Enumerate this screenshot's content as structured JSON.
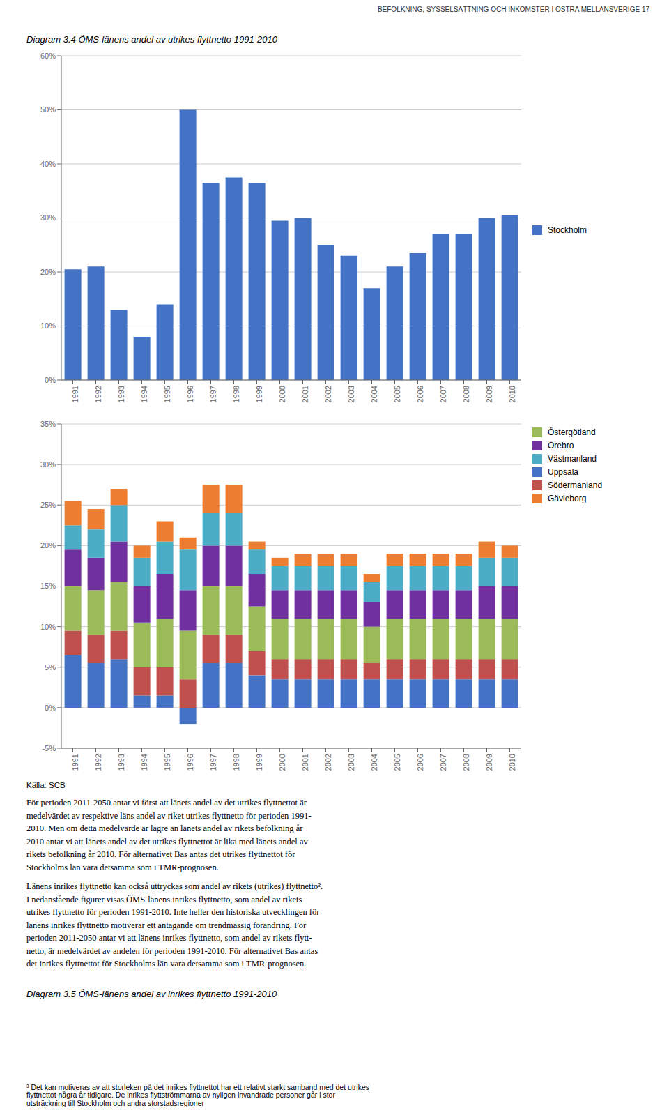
{
  "chart_data": [
    {
      "type": "bar",
      "title": "Diagram 3.4    ÖMS-länens andel av utrikes flyttnetto 1991-2010",
      "annotations": [
        [
          "BEFOLKNING, SYSSELSÄTTNING OCH INKOMSTER I ÖSTRA MELLANSVERIGE    17"
        ]
      ],
      "categories": [
        "1991",
        "1992",
        "1993",
        "1994",
        "1995",
        "1996",
        "1997",
        "1998",
        "1999",
        "2000",
        "2001",
        "2002",
        "2003",
        "2004",
        "2005",
        "2006",
        "2007",
        "2008",
        "2009",
        "2010"
      ],
      "series": [
        {
          "name": "Stockholm",
          "color": "#4472C4",
          "values": [
            0.205,
            0.21,
            0.13,
            0.08,
            0.14,
            0.5,
            0.365,
            0.375,
            0.365,
            0.295,
            0.3,
            0.25,
            0.23,
            0.17,
            0.21,
            0.235,
            0.27,
            0.27,
            0.3,
            0.305
          ]
        }
      ],
      "ylim": [
        0.0,
        0.6
      ],
      "yticks": [
        {
          "value": 0.0,
          "label": "0%"
        },
        {
          "value": 0.1,
          "label": "10%"
        },
        {
          "value": 0.2,
          "label": "20%"
        },
        {
          "value": 0.3,
          "label": "30%"
        },
        {
          "value": 0.4,
          "label": "40%"
        },
        {
          "value": 0.5,
          "label": "50%"
        },
        {
          "value": 0.6,
          "label": "60%"
        }
      ],
      "grid": true,
      "legend": "right",
      "stacked": false
    },
    {
      "type": "bar",
      "categories": [
        "1991",
        "1992",
        "1993",
        "1994",
        "1995",
        "1996",
        "1997",
        "1998",
        "1999",
        "2000",
        "2001",
        "2002",
        "2003",
        "2004",
        "2005",
        "2006",
        "2007",
        "2008",
        "2009",
        "2010"
      ],
      "series": [
        {
          "name": "Uppsala",
          "color": "#4472C4",
          "values": [
            0.065,
            0.055,
            0.06,
            0.015,
            0.015,
            -0.02,
            0.055,
            0.055,
            0.04,
            0.035,
            0.035,
            0.035,
            0.035,
            0.035,
            0.035,
            0.035,
            0.035,
            0.035,
            0.035,
            0.035
          ]
        },
        {
          "name": "Södermanland",
          "color": "#C0504D",
          "values": [
            0.03,
            0.035,
            0.035,
            0.035,
            0.035,
            0.035,
            0.035,
            0.035,
            0.03,
            0.025,
            0.025,
            0.025,
            0.025,
            0.02,
            0.025,
            0.025,
            0.025,
            0.025,
            0.025,
            0.025
          ]
        },
        {
          "name": "Östergötland",
          "color": "#9BBB59",
          "values": [
            0.055,
            0.055,
            0.06,
            0.055,
            0.06,
            0.06,
            0.06,
            0.06,
            0.055,
            0.05,
            0.05,
            0.05,
            0.05,
            0.045,
            0.05,
            0.05,
            0.05,
            0.05,
            0.05,
            0.05
          ]
        },
        {
          "name": "Örebro",
          "color": "#7030A0",
          "values": [
            0.045,
            0.04,
            0.05,
            0.045,
            0.055,
            0.05,
            0.05,
            0.05,
            0.04,
            0.035,
            0.035,
            0.035,
            0.035,
            0.03,
            0.035,
            0.035,
            0.035,
            0.035,
            0.04,
            0.04
          ]
        },
        {
          "name": "Västmanland",
          "color": "#4BACC6",
          "values": [
            0.03,
            0.035,
            0.045,
            0.035,
            0.04,
            0.05,
            0.04,
            0.04,
            0.03,
            0.03,
            0.03,
            0.03,
            0.03,
            0.025,
            0.03,
            0.03,
            0.03,
            0.03,
            0.035,
            0.035
          ]
        },
        {
          "name": "Gävleborg",
          "color": "#ED7D31",
          "values": [
            0.03,
            0.025,
            0.02,
            0.015,
            0.025,
            0.015,
            0.035,
            0.035,
            0.01,
            0.01,
            0.015,
            0.015,
            0.015,
            0.01,
            0.015,
            0.015,
            0.015,
            0.015,
            0.02,
            0.015
          ]
        }
      ],
      "ylim": [
        -0.05,
        0.35
      ],
      "yticks": [
        {
          "value": -0.05,
          "label": "-5%"
        },
        {
          "value": 0.0,
          "label": "0%"
        },
        {
          "value": 0.05,
          "label": "5%"
        },
        {
          "value": 0.1,
          "label": "10%"
        },
        {
          "value": 0.15,
          "label": "15%"
        },
        {
          "value": 0.2,
          "label": "20%"
        },
        {
          "value": 0.25,
          "label": "25%"
        },
        {
          "value": 0.3,
          "label": "30%"
        },
        {
          "value": 0.35,
          "label": "35%"
        }
      ],
      "grid": true,
      "legend": "right",
      "stacked": true,
      "annotations": [
        [
          "Källa: SCB"
        ],
        [
          "För perioden 2011-2050 antar vi först att länets andel av det utrikes flyttnettot är",
          "medelvärdet av respektive läns andel av riket utrikes flyttnetto för perioden 1991-",
          "2010. Men om detta medelvärde är lägre än länets andel av rikets befolkning år",
          "2010 antar vi att länets andel av det utrikes flyttnettot är lika med länets andel av",
          "rikets befolkning år 2010.  För alternativet Bas antas det utrikes flyttnettot för",
          "Stockholms län vara detsamma som i TMR-prognosen."
        ],
        [
          "Länens inrikes flyttnetto kan också uttryckas som andel av rikets (utrikes) flyttnetto³.",
          "I nedanstående figurer visas ÖMS-länens inrikes flyttnetto, som andel av rikets",
          "utrikes flyttnetto för perioden 1991-2010. Inte heller den historiska utvecklingen för",
          "länens inrikes flyttnetto motiverar ett antagande om trendmässig förändring.  För",
          "perioden 2011-2050 antar vi att länens inrikes flyttnetto, som andel av rikets flytt-",
          "netto, är medelvärdet av andelen för perioden 1991-2010. För alternativet Bas antas",
          "det inrikes flyttnettot för Stockholms län vara detsamma som i TMR-prognosen."
        ],
        [
          "Diagram 3.5    ÖMS-länens andel av inrikes flyttnetto 1991-2010"
        ],
        [
          "³ Det kan motiveras av att storleken på det inrikes flyttnettot har ett relativt starkt samband med det utrikes",
          "flyttnettot några år tidigare. De inrikes flyttströmmarna av nyligen invandrade personer går i stor",
          "utsträckning till Stockholm och andra storstadsregioner"
        ]
      ]
    }
  ]
}
